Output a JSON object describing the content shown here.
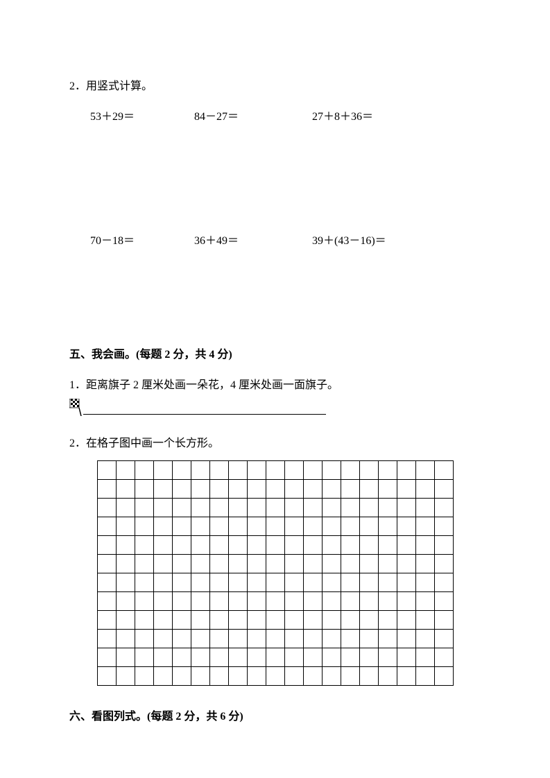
{
  "question2": {
    "header": "2．用竖式计算。",
    "row1": {
      "prob1": "53＋29＝",
      "prob2": "84－27＝",
      "prob3": "27＋8＋36＝"
    },
    "row2": {
      "prob1": "70－18＝",
      "prob2": "36＋49＝",
      "prob3": "39＋(43－16)＝"
    }
  },
  "section5": {
    "header": "五、我会画。(每题 2 分，共 4 分)",
    "sub1": "1．距离旗子 2 厘米处画一朵花，4 厘米处画一面旗子。",
    "sub2": "2．在格子图中画一个长方形。"
  },
  "section6": {
    "header": "六、看图列式。(每题 2 分，共 6 分)"
  },
  "grid": {
    "rows": 12,
    "cols": 19
  }
}
